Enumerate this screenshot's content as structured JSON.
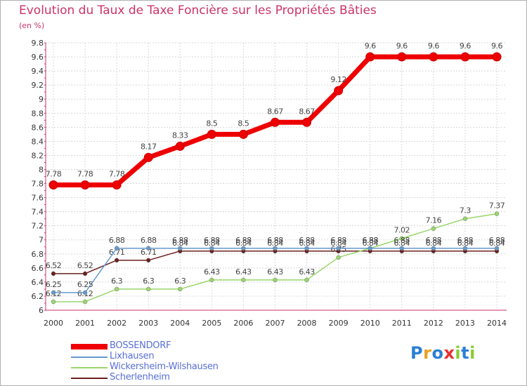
{
  "title": "Evolution du Taux de Taxe Foncière sur les Propriétés Bâties",
  "unit": "(en %)",
  "logo": {
    "p": "P",
    "r": "r",
    "o": "o",
    "x": "x",
    "i1": "i",
    "t": "t",
    "i2": "i"
  },
  "chart_data": {
    "type": "line",
    "title": "Evolution du Taux de Taxe Foncière sur les Propriétés Bâties",
    "ylabel": "(en %)",
    "xlabel": "",
    "ylim": [
      6,
      9.8
    ],
    "yticks": [
      "6",
      "6.2",
      "6.4",
      "6.6",
      "6.8",
      "7",
      "7.2",
      "7.4",
      "7.6",
      "7.8",
      "8",
      "8.2",
      "8.4",
      "8.6",
      "8.8",
      "9",
      "9.2",
      "9.4",
      "9.6",
      "9.8"
    ],
    "categories": [
      "2000",
      "2001",
      "2002",
      "2003",
      "2004",
      "2005",
      "2006",
      "2007",
      "2008",
      "2009",
      "2010",
      "2011",
      "2012",
      "2013",
      "2014"
    ],
    "series": [
      {
        "name": "Scherlenheim",
        "color": "#6b1f1f",
        "values": [
          6.52,
          6.52,
          6.71,
          6.71,
          6.84,
          6.84,
          6.84,
          6.84,
          6.84,
          6.84,
          6.84,
          6.84,
          6.84,
          6.84,
          6.84
        ],
        "labels": [
          "6.52",
          "6.52",
          "6.71",
          "6.71",
          "6.84",
          "6.84",
          "6.84",
          "6.84",
          "6.84",
          "6.84",
          "6.84",
          "6.84",
          "6.84",
          "6.84",
          "6.84"
        ]
      },
      {
        "name": "Wickersheim-Wilshausen",
        "color": "#99d66b",
        "values": [
          6.12,
          6.12,
          6.3,
          6.3,
          6.3,
          6.43,
          6.43,
          6.43,
          6.43,
          6.75,
          6.88,
          7.02,
          7.16,
          7.3,
          7.37
        ],
        "labels": [
          "6.12",
          "6.12",
          "6.3",
          "6.3",
          "6.3",
          "6.43",
          "6.43",
          "6.43",
          "6.43",
          "6.75",
          "6.88",
          "7.02",
          "7.16",
          "7.3",
          "7.37"
        ]
      },
      {
        "name": "Lixhausen",
        "color": "#6699cc",
        "values": [
          6.25,
          6.25,
          6.88,
          6.88,
          6.88,
          6.88,
          6.88,
          6.88,
          6.88,
          6.88,
          6.88,
          6.88,
          6.88,
          6.88,
          6.88
        ],
        "labels": [
          "6.25",
          "6.25",
          "6.88",
          "6.88",
          "6.88",
          "6.88",
          "6.88",
          "6.88",
          "6.88",
          "6.88",
          "6.88",
          "6.88",
          "6.88",
          "6.88",
          "6.88"
        ]
      },
      {
        "name": "BOSSENDORF",
        "color": "#ee0000",
        "values": [
          7.78,
          7.78,
          7.78,
          8.17,
          8.33,
          8.5,
          8.5,
          8.67,
          8.67,
          9.12,
          9.6,
          9.6,
          9.6,
          9.6,
          9.6
        ],
        "labels": [
          "7.78",
          "7.78",
          "7.78",
          "8.17",
          "8.33",
          "8.5",
          "8.5",
          "8.67",
          "8.67",
          "9.12",
          "9.6",
          "9.6",
          "9.6",
          "9.6",
          "9.6"
        ]
      }
    ]
  },
  "legend": [
    {
      "label": "BOSSENDORF",
      "color": "#ee0000"
    },
    {
      "label": "Lixhausen",
      "color": "#6699cc"
    },
    {
      "label": "Wickersheim-Wilshausen",
      "color": "#99d66b"
    },
    {
      "label": "Scherlenheim",
      "color": "#6b1f1f"
    }
  ]
}
